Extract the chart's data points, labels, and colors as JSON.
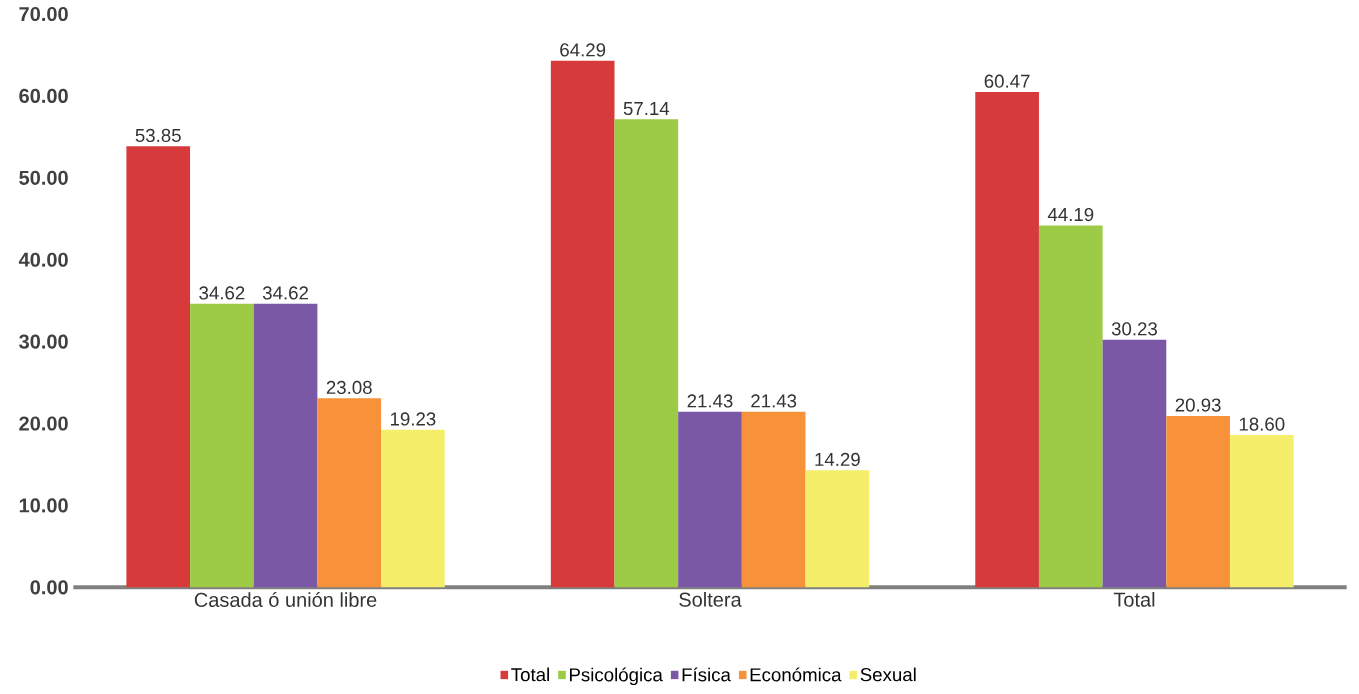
{
  "chart_data": {
    "type": "bar",
    "categories": [
      "Casada ó unión libre",
      "Soltera",
      "Total"
    ],
    "series": [
      {
        "name": "Total",
        "color": "#d63a3a",
        "values": [
          53.85,
          64.29,
          60.47
        ],
        "value_labels": [
          "53.85",
          "64.29",
          "60.47"
        ]
      },
      {
        "name": "Psicológica",
        "color": "#9dcb46",
        "values": [
          34.62,
          57.14,
          44.19
        ],
        "value_labels": [
          "34.62",
          "57.14",
          "44.19"
        ]
      },
      {
        "name": "Física",
        "color": "#7b58a6",
        "values": [
          34.62,
          21.43,
          30.23
        ],
        "value_labels": [
          "34.62",
          "21.43",
          "30.23"
        ]
      },
      {
        "name": "Económica",
        "color": "#f7923a",
        "values": [
          23.08,
          21.43,
          20.93
        ],
        "value_labels": [
          "23.08",
          "21.43",
          "20.93"
        ]
      },
      {
        "name": "Sexual",
        "color": "#f5ee6a",
        "values": [
          19.23,
          14.29,
          18.6
        ],
        "value_labels": [
          "19.23",
          "14.29",
          "18.60"
        ]
      }
    ],
    "ylim": [
      0,
      70
    ],
    "yticks": [
      {
        "value": 0,
        "label": "0.00"
      },
      {
        "value": 10,
        "label": "10.00"
      },
      {
        "value": 20,
        "label": "20.00"
      },
      {
        "value": 30,
        "label": "30.00"
      },
      {
        "value": 40,
        "label": "40.00"
      },
      {
        "value": 50,
        "label": "50.00"
      },
      {
        "value": 60,
        "label": "60.00"
      },
      {
        "value": 70,
        "label": "70.00"
      }
    ],
    "legend": "bottom"
  }
}
